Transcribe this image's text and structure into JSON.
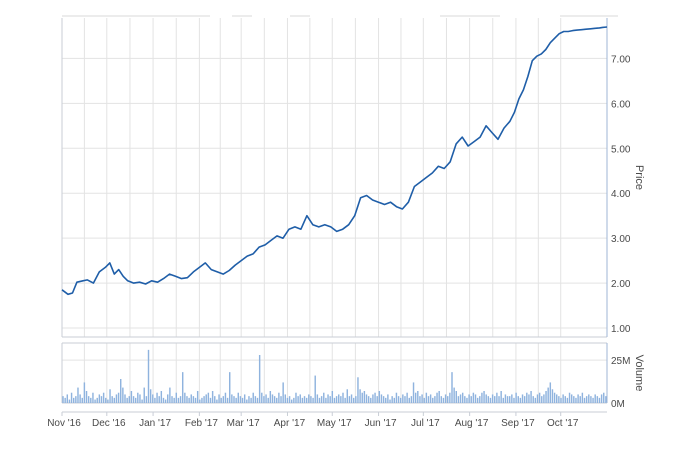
{
  "colors": {
    "price_line": "#1f5ea8",
    "volume_bar": "#8fb3de",
    "grid": "#e3e3e3",
    "axis_text": "#4a4a4a"
  },
  "chart_data": [
    {
      "type": "line",
      "ylabel": "Price",
      "ylim": [
        0.8,
        7.9
      ],
      "yticks": [
        1,
        2,
        3,
        4,
        5,
        6,
        7
      ],
      "ytick_labels": [
        "1.00",
        "2.00",
        "3.00",
        "4.00",
        "5.00",
        "6.00",
        "7.00"
      ],
      "y_axis_position": "right",
      "grid": true,
      "series": [
        {
          "x": [
            "2016-11-01",
            "2016-11-05",
            "2016-11-08",
            "2016-11-11",
            "2016-11-15",
            "2016-11-18",
            "2016-11-22",
            "2016-11-26",
            "2016-11-30",
            "2016-12-03",
            "2016-12-06",
            "2016-12-09",
            "2016-12-12",
            "2016-12-15",
            "2016-12-19",
            "2016-12-23",
            "2016-12-27",
            "2016-12-31",
            "2017-01-04",
            "2017-01-08",
            "2017-01-12",
            "2017-01-16",
            "2017-01-20",
            "2017-01-24",
            "2017-01-28",
            "2017-02-01",
            "2017-02-05",
            "2017-02-09",
            "2017-02-13",
            "2017-02-17",
            "2017-02-21",
            "2017-02-25",
            "2017-03-01",
            "2017-03-05",
            "2017-03-09",
            "2017-03-13",
            "2017-03-17",
            "2017-03-21",
            "2017-03-25",
            "2017-03-29",
            "2017-04-02",
            "2017-04-06",
            "2017-04-10",
            "2017-04-14",
            "2017-04-18",
            "2017-04-22",
            "2017-04-26",
            "2017-04-30",
            "2017-05-04",
            "2017-05-08",
            "2017-05-12",
            "2017-05-16",
            "2017-05-20",
            "2017-05-24",
            "2017-05-28",
            "2017-06-01",
            "2017-06-05",
            "2017-06-09",
            "2017-06-13",
            "2017-06-17",
            "2017-06-21",
            "2017-06-25",
            "2017-06-29",
            "2017-07-03",
            "2017-07-07",
            "2017-07-11",
            "2017-07-15",
            "2017-07-19",
            "2017-07-23",
            "2017-07-27",
            "2017-07-31",
            "2017-08-04",
            "2017-08-08",
            "2017-08-12",
            "2017-08-16",
            "2017-08-20",
            "2017-08-24",
            "2017-08-28",
            "2017-08-31",
            "2017-09-03",
            "2017-09-06",
            "2017-09-09",
            "2017-09-12",
            "2017-09-15",
            "2017-09-18",
            "2017-09-21",
            "2017-09-24",
            "2017-09-27",
            "2017-09-30",
            "2017-10-03",
            "2017-10-06",
            "2017-10-09",
            "2017-10-12",
            "2017-10-15",
            "2017-10-18",
            "2017-10-21",
            "2017-10-24",
            "2017-10-27",
            "2017-10-29",
            "2017-11-01"
          ],
          "values": [
            1.85,
            1.75,
            1.78,
            2.02,
            2.05,
            2.07,
            2.0,
            2.25,
            2.35,
            2.45,
            2.2,
            2.3,
            2.15,
            2.05,
            2.0,
            2.02,
            1.98,
            2.05,
            2.02,
            2.1,
            2.2,
            2.15,
            2.1,
            2.12,
            2.25,
            2.35,
            2.45,
            2.3,
            2.25,
            2.2,
            2.28,
            2.4,
            2.5,
            2.6,
            2.65,
            2.8,
            2.85,
            2.95,
            3.05,
            3.0,
            3.2,
            3.25,
            3.2,
            3.5,
            3.3,
            3.25,
            3.3,
            3.25,
            3.15,
            3.2,
            3.3,
            3.5,
            3.9,
            3.95,
            3.85,
            3.8,
            3.75,
            3.8,
            3.7,
            3.65,
            3.8,
            4.15,
            4.25,
            4.35,
            4.45,
            4.6,
            4.55,
            4.7,
            5.1,
            5.25,
            5.05,
            5.15,
            5.25,
            5.5,
            5.35,
            5.2,
            5.45,
            5.6,
            5.8,
            6.1,
            6.3,
            6.6,
            6.95,
            7.05,
            7.1,
            7.2,
            7.35,
            7.45,
            7.55,
            7.6,
            7.6,
            7.62,
            7.63,
            7.64,
            7.65,
            7.66,
            7.67,
            7.68,
            7.69,
            7.7
          ]
        }
      ]
    },
    {
      "type": "bar",
      "ylabel": "Volume",
      "ylim": [
        0,
        35
      ],
      "ytick_labels": [
        "0M",
        "25M"
      ],
      "yticks": [
        0,
        25
      ],
      "y_axis_position": "right",
      "x_tick_labels": [
        "Nov '16",
        "Dec '16",
        "Jan '17",
        "Feb '17",
        "Mar '17",
        "Apr '17",
        "May '17",
        "Jun '17",
        "Jul '17",
        "Aug '17",
        "Sep '17",
        "Oct '17"
      ],
      "x_tick_dates": [
        "2016-11-01",
        "2016-12-01",
        "2017-01-01",
        "2017-02-01",
        "2017-03-01",
        "2017-04-01",
        "2017-05-01",
        "2017-06-01",
        "2017-07-01",
        "2017-08-01",
        "2017-09-01",
        "2017-10-01"
      ],
      "series": [
        {
          "values": [
            4,
            3,
            5,
            2,
            6,
            3,
            4,
            9,
            5,
            3,
            12,
            7,
            4,
            3,
            6,
            2,
            3,
            5,
            4,
            6,
            3,
            2,
            8,
            4,
            3,
            5,
            6,
            14,
            9,
            5,
            3,
            4,
            7,
            4,
            3,
            6,
            5,
            2,
            9,
            4,
            31,
            8,
            5,
            3,
            6,
            4,
            7,
            3,
            2,
            5,
            9,
            4,
            3,
            6,
            3,
            4,
            18,
            6,
            4,
            3,
            5,
            4,
            3,
            7,
            2,
            3,
            4,
            5,
            6,
            3,
            7,
            4,
            2,
            5,
            3,
            4,
            6,
            3,
            18,
            5,
            4,
            3,
            6,
            4,
            3,
            5,
            2,
            4,
            3,
            6,
            4,
            3,
            28,
            6,
            4,
            5,
            3,
            7,
            5,
            4,
            3,
            6,
            4,
            12,
            5,
            3,
            4,
            2,
            3,
            6,
            4,
            5,
            3,
            4,
            3,
            5,
            4,
            3,
            16,
            5,
            3,
            4,
            6,
            3,
            5,
            4,
            7,
            3,
            4,
            5,
            4,
            6,
            3,
            8,
            4,
            5,
            3,
            4,
            15,
            8,
            6,
            7,
            5,
            4,
            3,
            5,
            6,
            4,
            7,
            5,
            4,
            3,
            5,
            2,
            4,
            3,
            6,
            4,
            3,
            5,
            4,
            6,
            3,
            4,
            12,
            6,
            7,
            4,
            5,
            3,
            6,
            4,
            5,
            3,
            4,
            6,
            7,
            4,
            3,
            5,
            4,
            6,
            18,
            9,
            7,
            4,
            5,
            6,
            4,
            3,
            5,
            4,
            6,
            5,
            3,
            4,
            6,
            7,
            5,
            4,
            3,
            5,
            4,
            6,
            4,
            7,
            3,
            5,
            4,
            4,
            5,
            3,
            6,
            4,
            3,
            5,
            4,
            6,
            5,
            7,
            4,
            3,
            5,
            6,
            4,
            5,
            7,
            9,
            12,
            8,
            6,
            5,
            4,
            3,
            5,
            4,
            3,
            6,
            5,
            4,
            3,
            5,
            4,
            6,
            3,
            4,
            5,
            4,
            3,
            5,
            4,
            3,
            5,
            6,
            4
          ]
        }
      ]
    }
  ]
}
